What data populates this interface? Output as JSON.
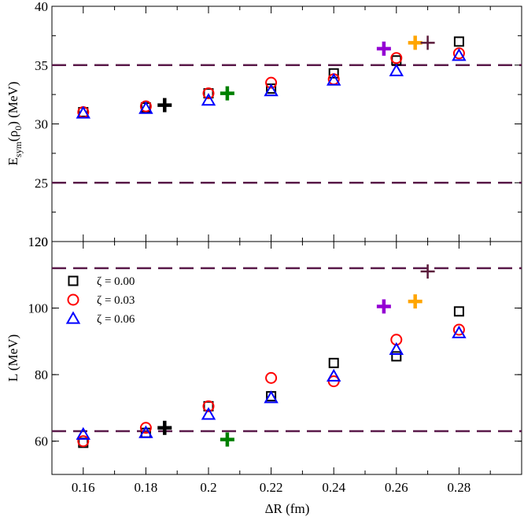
{
  "chart_data": [
    {
      "type": "scatter",
      "panel": "top",
      "ylabel_main": "E",
      "ylabel_sub": "sym",
      "ylabel_rest_1": "(ρ",
      "ylabel_rest_sub": "0",
      "ylabel_rest_2": ") (MeV)",
      "xlim": [
        0.15,
        0.3
      ],
      "ylim": [
        20,
        40
      ],
      "yticks": [
        20,
        25,
        30,
        35,
        40
      ],
      "ytick_labels": [
        "20",
        "25",
        "30",
        "35",
        "40"
      ],
      "reference_lines": [
        35,
        25
      ],
      "series": [
        {
          "name": "ζ = 0.00",
          "marker": "square",
          "color": "#000000",
          "x": [
            0.16,
            0.18,
            0.2,
            0.22,
            0.24,
            0.26,
            0.28
          ],
          "y": [
            31.0,
            31.4,
            32.6,
            33.0,
            34.3,
            35.4,
            37.0
          ]
        },
        {
          "name": "ζ = 0.03",
          "marker": "circle",
          "color": "#ff0000",
          "x": [
            0.16,
            0.18,
            0.2,
            0.22,
            0.24,
            0.26,
            0.28
          ],
          "y": [
            31.0,
            31.5,
            32.6,
            33.5,
            33.8,
            35.6,
            36.0
          ]
        },
        {
          "name": "ζ = 0.06",
          "marker": "triangle",
          "color": "#0000ff",
          "x": [
            0.16,
            0.18,
            0.2,
            0.22,
            0.24,
            0.26,
            0.28
          ],
          "y": [
            30.9,
            31.3,
            32.0,
            32.8,
            33.7,
            34.5,
            35.8
          ]
        }
      ],
      "cross_markers": [
        {
          "x": 0.186,
          "y": 31.6,
          "color": "#000000",
          "style": "thick"
        },
        {
          "x": 0.206,
          "y": 32.6,
          "color": "#008000",
          "style": "thick"
        },
        {
          "x": 0.256,
          "y": 36.4,
          "color": "#9400d3",
          "style": "thick"
        },
        {
          "x": 0.266,
          "y": 36.9,
          "color": "#ffa500",
          "style": "thick"
        },
        {
          "x": 0.27,
          "y": 36.9,
          "color": "#5a1a3a",
          "style": "thin"
        }
      ]
    },
    {
      "type": "scatter",
      "panel": "bottom",
      "xlabel": "ΔR (fm)",
      "ylabel": "L (MeV)",
      "xlim": [
        0.15,
        0.3
      ],
      "ylim": [
        50,
        120
      ],
      "xticks": [
        0.16,
        0.18,
        0.2,
        0.22,
        0.24,
        0.26,
        0.28
      ],
      "xtick_labels": [
        "0.16",
        "0.18",
        "0.2",
        "0.22",
        "0.24",
        "0.26",
        "0.28"
      ],
      "yticks": [
        60,
        80,
        100,
        120
      ],
      "ytick_labels": [
        "60",
        "80",
        "100",
        "120"
      ],
      "reference_lines": [
        112,
        63
      ],
      "series": [
        {
          "name": "ζ = 0.00",
          "marker": "square",
          "color": "#000000",
          "x": [
            0.16,
            0.18,
            0.2,
            0.22,
            0.24,
            0.26,
            0.28
          ],
          "y": [
            59.5,
            62.5,
            70.5,
            73.5,
            83.5,
            85.5,
            99.0
          ]
        },
        {
          "name": "ζ = 0.03",
          "marker": "circle",
          "color": "#ff0000",
          "x": [
            0.16,
            0.18,
            0.2,
            0.22,
            0.24,
            0.26,
            0.28
          ],
          "y": [
            60.0,
            64.0,
            70.5,
            79.0,
            78.0,
            90.5,
            93.5
          ]
        },
        {
          "name": "ζ = 0.06",
          "marker": "triangle",
          "color": "#0000ff",
          "x": [
            0.16,
            0.18,
            0.2,
            0.22,
            0.24,
            0.26,
            0.28
          ],
          "y": [
            62.0,
            62.5,
            68.0,
            73.0,
            79.5,
            87.5,
            92.5
          ]
        }
      ],
      "cross_markers": [
        {
          "x": 0.186,
          "y": 64.0,
          "color": "#000000",
          "style": "thick"
        },
        {
          "x": 0.206,
          "y": 60.5,
          "color": "#008000",
          "style": "thick"
        },
        {
          "x": 0.256,
          "y": 100.5,
          "color": "#9400d3",
          "style": "thick"
        },
        {
          "x": 0.266,
          "y": 102.0,
          "color": "#ffa500",
          "style": "thick"
        },
        {
          "x": 0.27,
          "y": 111.0,
          "color": "#5a1a3a",
          "style": "thin"
        }
      ],
      "legend": {
        "placement": "top-left",
        "entries": [
          {
            "label": "ζ = 0.00",
            "marker": "square",
            "color": "#000000"
          },
          {
            "label": "ζ = 0.03",
            "marker": "circle",
            "color": "#ff0000"
          },
          {
            "label": "ζ = 0.06",
            "marker": "triangle",
            "color": "#0000ff"
          }
        ]
      }
    }
  ],
  "colors": {
    "reference_line": "#5a1a4a",
    "axis": "#000000"
  }
}
